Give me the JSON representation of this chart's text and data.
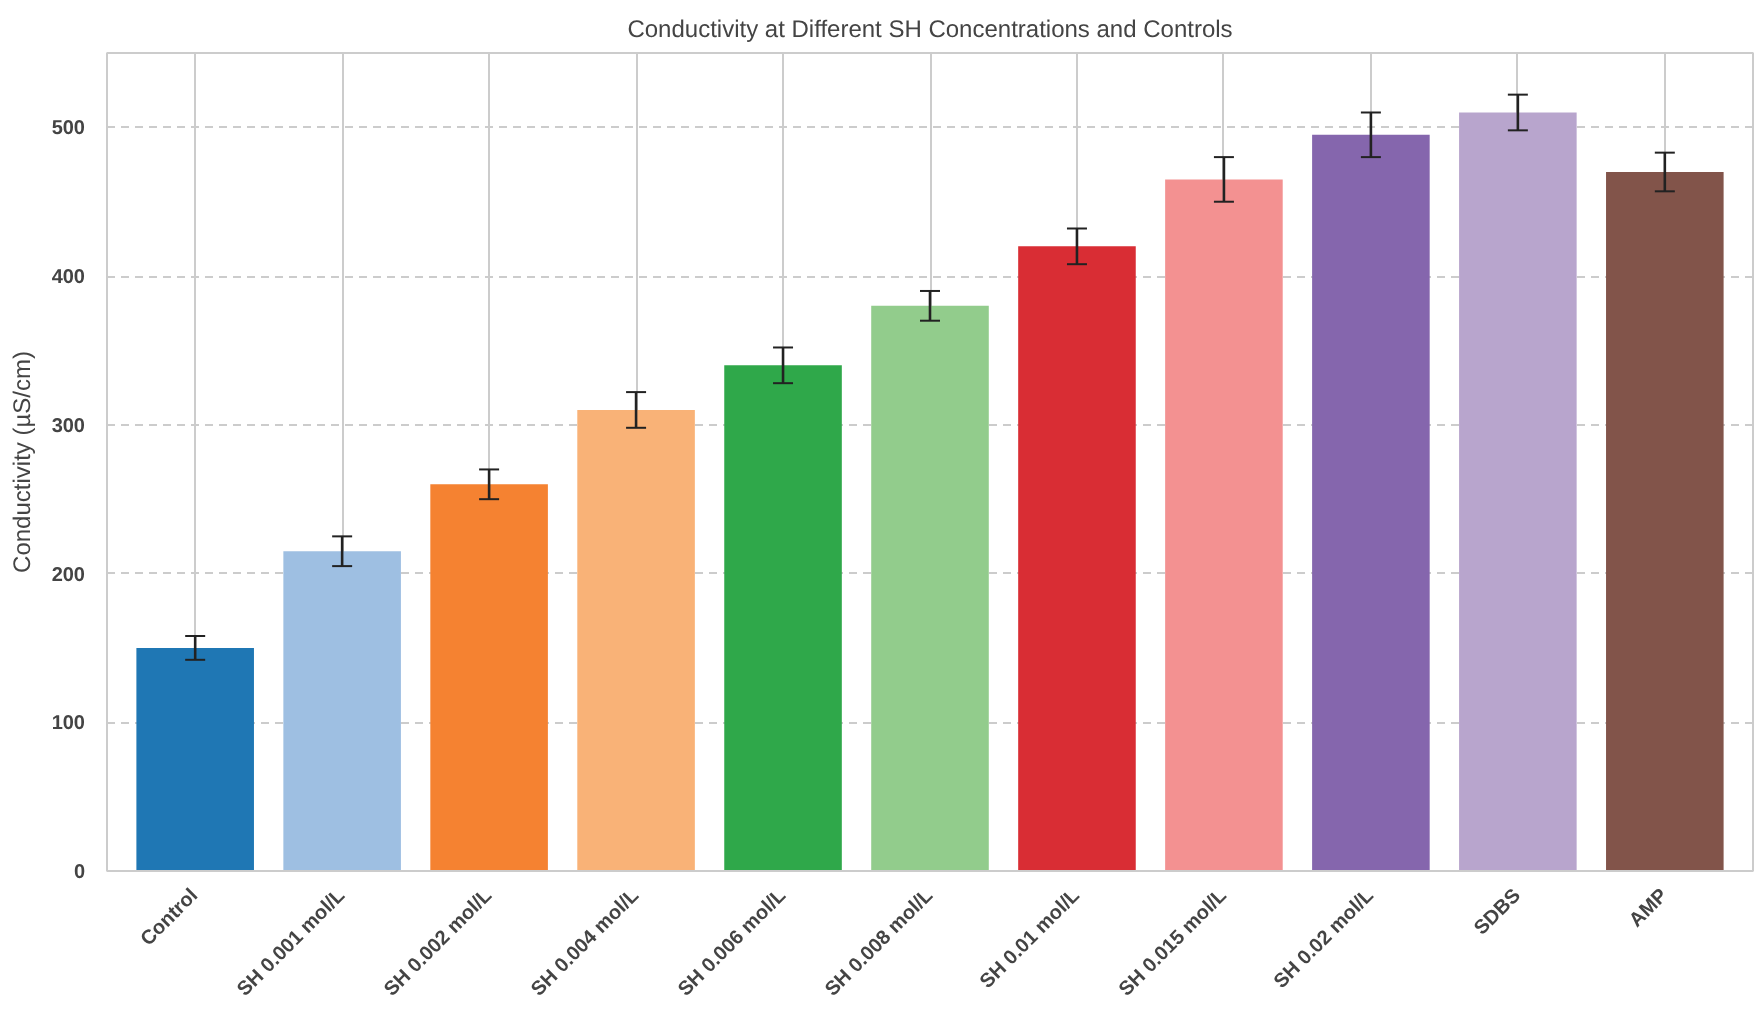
{
  "chart_data": {
    "type": "bar",
    "title": "Conductivity at Different SH Concentrations and Controls",
    "ylabel": "Conductivity (µS/cm)",
    "categories": [
      "Control",
      "SH 0.001 mol/L",
      "SH 0.002 mol/L",
      "SH 0.004 mol/L",
      "SH 0.006 mol/L",
      "SH 0.008 mol/L",
      "SH 0.01 mol/L",
      "SH 0.015 mol/L",
      "SH 0.02 mol/L",
      "SDBS",
      "AMP"
    ],
    "values": [
      150,
      215,
      260,
      310,
      340,
      380,
      420,
      465,
      495,
      510,
      470
    ],
    "errors": [
      8,
      10,
      10,
      12,
      12,
      10,
      12,
      15,
      15,
      12,
      13
    ],
    "colors": [
      "#1f77b4",
      "#9ebfe2",
      "#f58231",
      "#f9b277",
      "#2fa84a",
      "#92cc8c",
      "#d92d34",
      "#f39191",
      "#8566ad",
      "#b8a5cd",
      "#82544a"
    ],
    "ylim": [
      0,
      550
    ],
    "yticks": [
      0,
      100,
      200,
      300,
      400,
      500
    ],
    "grid": true
  }
}
